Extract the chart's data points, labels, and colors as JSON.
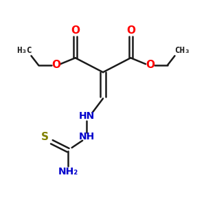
{
  "bg_color": "#FFFFFF",
  "bond_color": "#1a1a1a",
  "oxygen_color": "#FF0000",
  "nitrogen_color": "#0000CC",
  "sulfur_color": "#808000",
  "lw": 1.8,
  "figsize": [
    3.0,
    3.0
  ],
  "dpi": 100,
  "xlim": [
    0,
    10
  ],
  "ylim": [
    0,
    10
  ]
}
